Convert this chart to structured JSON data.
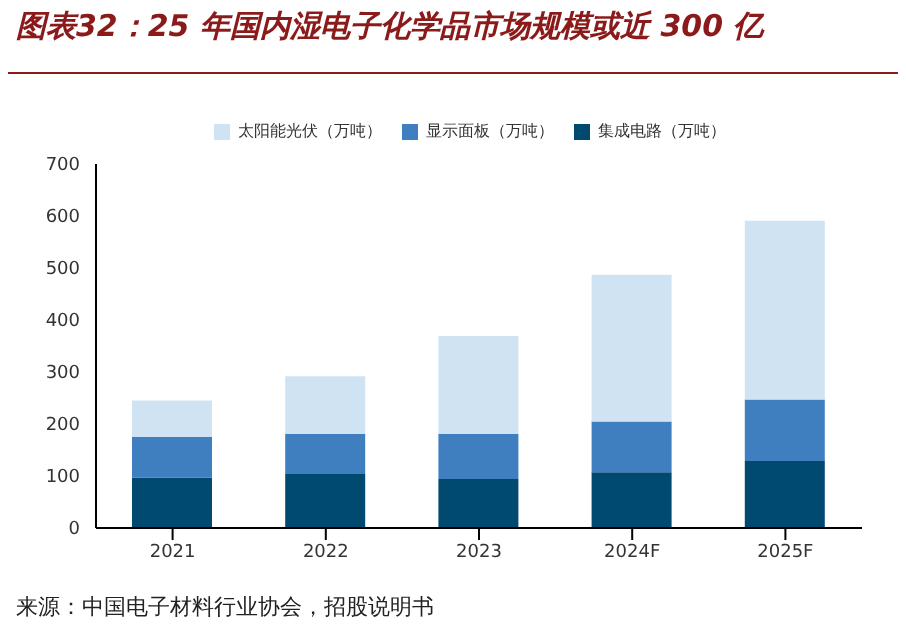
{
  "chart_data": {
    "type": "bar",
    "title": "图表32：25 年国内湿电子化学品市场规模或近 300 亿",
    "categories": [
      "2021",
      "2022",
      "2023",
      "2024F",
      "2025F"
    ],
    "stacked": true,
    "series": [
      {
        "name": "集成电路（万吨）",
        "color": "#004a70",
        "values": [
          97,
          104,
          94,
          107,
          129
        ]
      },
      {
        "name": "显示面板（万吨）",
        "color": "#3f7fbf",
        "values": [
          78,
          77,
          87,
          98,
          118
        ]
      },
      {
        "name": "太阳能光伏（万吨）",
        "color": "#d0e3f3",
        "values": [
          70,
          111,
          188,
          282,
          344
        ]
      }
    ],
    "ylim": [
      0,
      700
    ],
    "yticks": [
      0,
      100,
      200,
      300,
      400,
      500,
      600,
      700
    ],
    "grid": false,
    "legend": "top",
    "annotations": [
      "来源：中国电子材料行业协会，招股说明书"
    ]
  }
}
